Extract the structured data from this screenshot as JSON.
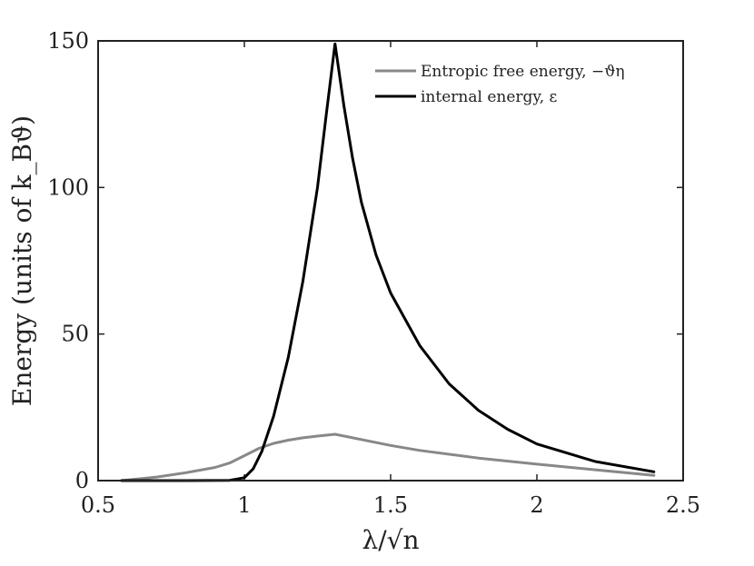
{
  "chart_data": {
    "type": "line",
    "xlabel": "λ/√n",
    "ylabel": "Energy (units of k_Bϑ)",
    "xlim": [
      0.5,
      2.5
    ],
    "ylim": [
      0,
      150
    ],
    "xticks": [
      0.5,
      1,
      1.5,
      2,
      2.5
    ],
    "xtick_labels": [
      "0.5",
      "1",
      "1.5",
      "2",
      "2.5"
    ],
    "yticks": [
      0,
      50,
      100,
      150
    ],
    "ytick_labels": [
      "0",
      "50",
      "100",
      "150"
    ],
    "grid": false,
    "legend_position": "top-right",
    "series": [
      {
        "name": "Entropic free energy, −ϑη",
        "color": "#888888",
        "x": [
          0.58,
          0.7,
          0.8,
          0.9,
          0.95,
          1.0,
          1.05,
          1.1,
          1.15,
          1.2,
          1.25,
          1.31,
          1.4,
          1.5,
          1.6,
          1.8,
          2.0,
          2.2,
          2.4
        ],
        "y": [
          0,
          1.2,
          2.7,
          4.5,
          6.0,
          8.5,
          11.0,
          12.7,
          13.8,
          14.6,
          15.2,
          15.8,
          14.0,
          12.0,
          10.3,
          7.7,
          5.6,
          3.7,
          1.8
        ]
      },
      {
        "name": "internal energy, ε",
        "color": "#000000",
        "x": [
          0.58,
          0.8,
          0.95,
          1.0,
          1.03,
          1.06,
          1.1,
          1.15,
          1.2,
          1.25,
          1.28,
          1.31,
          1.34,
          1.37,
          1.4,
          1.45,
          1.5,
          1.6,
          1.7,
          1.8,
          1.9,
          2.0,
          2.2,
          2.4
        ],
        "y": [
          0,
          0,
          0.1,
          1.0,
          4.0,
          10.0,
          22.0,
          42.0,
          68.0,
          100.0,
          125.0,
          149.0,
          128.0,
          110.0,
          95.0,
          77.0,
          64.0,
          46.0,
          33.0,
          24.0,
          17.5,
          12.5,
          6.5,
          3.0
        ]
      }
    ]
  }
}
